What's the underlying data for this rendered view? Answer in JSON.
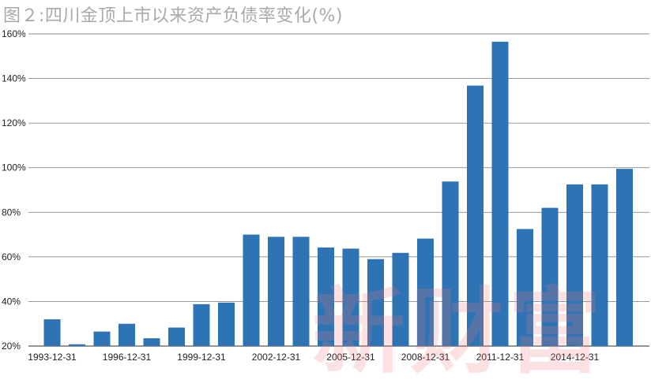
{
  "chart_data": {
    "type": "bar",
    "title": "图２:四川金顶上市以来资产负债率变化(%)",
    "ylim": [
      20,
      160
    ],
    "yticks": [
      "20%",
      "40%",
      "60%",
      "80%",
      "100%",
      "120%",
      "140%",
      "160%"
    ],
    "grid": true,
    "colors": {
      "bar": "#2e74b5",
      "grid": "#8a8a8a",
      "title": "#a9a9a9"
    },
    "categories": [
      "1993-12-31",
      "1994-12-31",
      "1995-12-31",
      "1996-12-31",
      "1997-12-31",
      "1998-12-31",
      "1999-12-31",
      "2000-12-31",
      "2001-12-31",
      "2002-12-31",
      "2003-12-31",
      "2004-12-31",
      "2005-12-31",
      "2006-12-31",
      "2007-12-31",
      "2008-12-31",
      "2009-12-31",
      "2010-12-31",
      "2011-12-31",
      "2012-12-31",
      "2013-12-31",
      "2014-12-31",
      "2015-12-31",
      "2016-12-31"
    ],
    "visible_xticks": [
      "1993-12-31",
      "1996-12-31",
      "1999-12-31",
      "2002-12-31",
      "2005-12-31",
      "2008-12-31",
      "2011-12-31",
      "2014-12-31"
    ],
    "values": [
      32,
      20.8,
      26.5,
      30,
      23.5,
      28.3,
      38.8,
      39.5,
      70,
      69,
      69,
      64.2,
      63.7,
      59,
      61.8,
      68.2,
      93.8,
      136.8,
      156.5,
      72.5,
      82,
      92.5,
      92.5,
      99.5
    ]
  },
  "watermark": {
    "text": "新财富"
  }
}
